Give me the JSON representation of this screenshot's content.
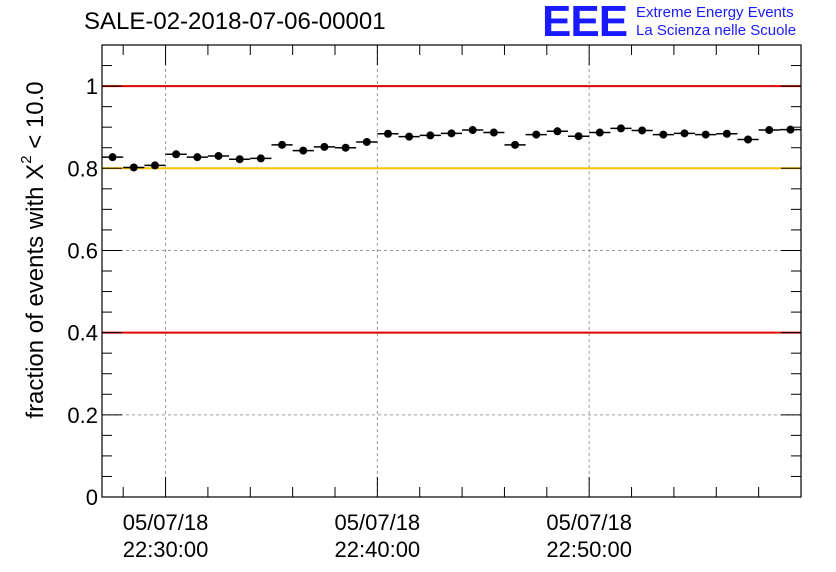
{
  "header": {
    "title": "SALE-02-2018-07-06-00001",
    "logo_text": "EEE",
    "logo_line1": "Extreme Energy Events",
    "logo_line2": "La Scienza nelle Scuole"
  },
  "colors": {
    "threshold_red": "#e00000",
    "threshold_yellow": "#ffc000",
    "logo_blue": "#1a1aff",
    "marker": "#000000",
    "grid": "#9a9a9a"
  },
  "chart_data": {
    "type": "scatter",
    "title": "SALE-02-2018-07-06-00001",
    "ylabel_prefix": "fraction of events with ",
    "ylabel_symbol": "X",
    "ylabel_exponent": "2",
    "ylabel_suffix": " < 10.0",
    "xlabel": "",
    "x_axis": "time",
    "ylim": [
      0,
      1.1
    ],
    "y_ticks": [
      "0",
      "0.2",
      "0.4",
      "0.6",
      "0.8",
      "1"
    ],
    "x_tick_labels": [
      {
        "time": "22:30:00",
        "date_line": "05/07/18",
        "time_line": "22:30:00"
      },
      {
        "time": "22:40:00",
        "date_line": "05/07/18",
        "time_line": "22:40:00"
      },
      {
        "time": "22:50:00",
        "date_line": "05/07/18",
        "time_line": "22:50:00"
      }
    ],
    "x_range": [
      "22:27:00",
      "23:00:00"
    ],
    "bin_minutes": 1,
    "reference_lines": [
      {
        "y": 1.0,
        "color": "red"
      },
      {
        "y": 0.8,
        "color": "yellow"
      },
      {
        "y": 0.4,
        "color": "red"
      }
    ],
    "grid": true,
    "series": [
      {
        "time": [
          "22:27:30",
          "22:28:30",
          "22:29:30",
          "22:30:30",
          "22:31:30",
          "22:32:30",
          "22:33:30",
          "22:34:30",
          "22:35:30",
          "22:36:30",
          "22:37:30",
          "22:38:30",
          "22:39:30",
          "22:40:30",
          "22:41:30",
          "22:42:30",
          "22:43:30",
          "22:44:30",
          "22:45:30",
          "22:46:30",
          "22:47:30",
          "22:48:30",
          "22:49:30",
          "22:50:30",
          "22:51:30",
          "22:52:30",
          "22:53:30",
          "22:54:30",
          "22:55:30",
          "22:56:30",
          "22:57:30",
          "22:58:30",
          "22:59:30"
        ],
        "values": [
          0.827,
          0.802,
          0.807,
          0.834,
          0.827,
          0.83,
          0.822,
          0.824,
          0.857,
          0.843,
          0.852,
          0.85,
          0.864,
          0.884,
          0.877,
          0.88,
          0.885,
          0.893,
          0.887,
          0.857,
          0.882,
          0.89,
          0.878,
          0.887,
          0.897,
          0.892,
          0.882,
          0.885,
          0.882,
          0.884,
          0.87,
          0.893,
          0.894
        ]
      }
    ]
  }
}
